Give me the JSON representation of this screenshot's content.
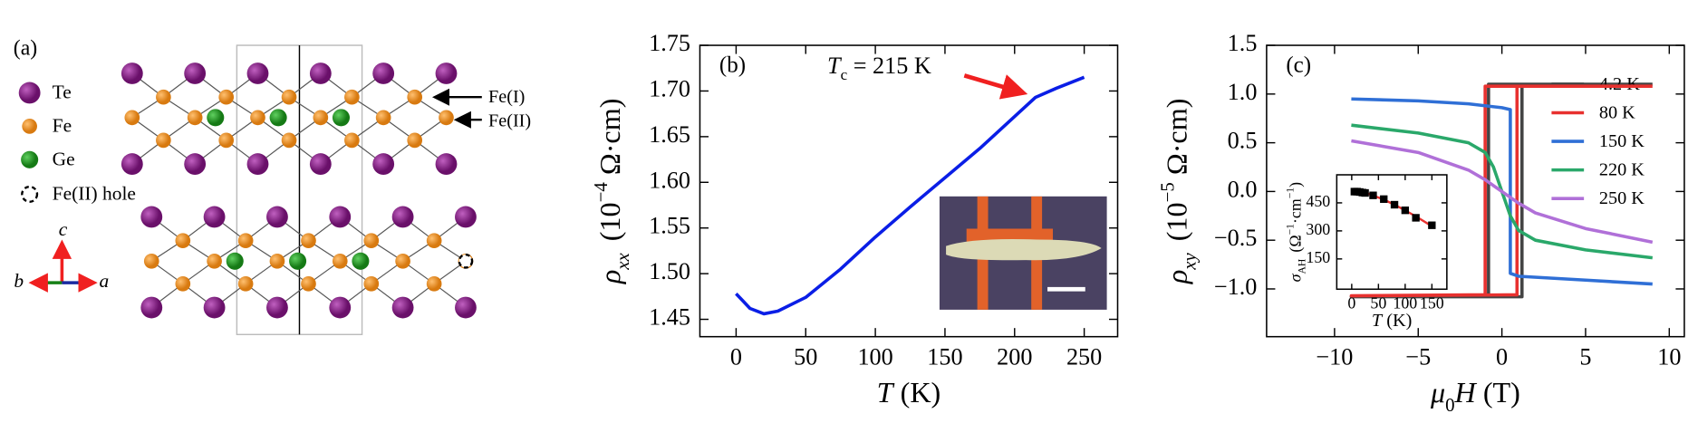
{
  "structure": {
    "label": "(a)",
    "legend": [
      "Te",
      "Fe",
      "Ge",
      "Fe(II) hole"
    ],
    "axes": [
      "c",
      "b",
      "a"
    ],
    "annotations": [
      "Fe(I)",
      "Fe(II)"
    ]
  },
  "chart_data": [
    {
      "type": "line",
      "panel_label": "(b)",
      "xlabel": [
        "T",
        " (K)"
      ],
      "ylabel": [
        "ρ",
        "xx",
        "(10",
        "−4",
        " Ω·cm)"
      ],
      "annotation": [
        "T",
        "c",
        " = 215 K"
      ],
      "x": [
        0,
        5,
        10,
        20,
        30,
        50,
        75,
        100,
        125,
        150,
        175,
        200,
        215,
        230,
        250
      ],
      "series": [
        {
          "color": "#0a1ee6",
          "values": [
            1.478,
            1.47,
            1.462,
            1.456,
            1.459,
            1.474,
            1.505,
            1.54,
            1.573,
            1.605,
            1.637,
            1.672,
            1.693,
            1.703,
            1.715
          ]
        }
      ],
      "xlim": [
        -26,
        274
      ],
      "ylim": [
        1.431,
        1.75
      ],
      "xticks": [
        0,
        50,
        100,
        150,
        200,
        250
      ],
      "yticks": [
        1.45,
        {
          "value": 1.5,
          "label": "1.50"
        },
        1.55,
        {
          "value": 1.6,
          "label": "1.60"
        },
        1.65,
        {
          "value": 1.7,
          "label": "1.70"
        },
        1.75
      ]
    },
    {
      "type": "line",
      "panel_label": "(c)",
      "xlabel": [
        "μ",
        "0",
        "H",
        " (T)"
      ],
      "ylabel": [
        "ρ",
        "xy",
        "(10",
        "−5",
        " Ω·cm)"
      ],
      "legend": "upper right",
      "series": [
        {
          "name": "4.2 K",
          "color": "#444444",
          "x": [
            9,
            -0.8,
            -0.8,
            -9,
            -9,
            1.2,
            1.2,
            9
          ],
          "values": [
            1.1,
            1.1,
            -1.08,
            -1.08,
            -1.08,
            -1.08,
            1.1,
            1.1
          ]
        },
        {
          "name": "80 K",
          "color": "#e8312f",
          "x": [
            9,
            -1.0,
            -1.0,
            -9,
            -9,
            0.9,
            0.9,
            9
          ],
          "values": [
            1.08,
            1.08,
            -1.06,
            -1.07,
            -1.07,
            -1.06,
            1.08,
            1.08
          ]
        },
        {
          "name": "150 K",
          "color": "#2f6fd6",
          "x": [
            -9,
            -5,
            -2,
            0,
            0.5,
            0.5,
            1,
            5,
            9
          ],
          "values": [
            0.95,
            0.93,
            0.9,
            0.86,
            0.84,
            -0.84,
            -0.87,
            -0.91,
            -0.95
          ]
        },
        {
          "name": "220 K",
          "color": "#2aa86a",
          "x": [
            -9,
            -5,
            -2,
            -1,
            -0.5,
            0,
            0.5,
            1,
            2,
            5,
            9
          ],
          "values": [
            0.68,
            0.6,
            0.5,
            0.4,
            0.25,
            0,
            -0.25,
            -0.4,
            -0.5,
            -0.6,
            -0.68
          ]
        },
        {
          "name": "250 K",
          "color": "#b070d8",
          "x": [
            -9,
            -5,
            -2,
            -1,
            0,
            1,
            2,
            5,
            9
          ],
          "values": [
            0.52,
            0.4,
            0.22,
            0.12,
            0,
            -0.12,
            -0.22,
            -0.38,
            -0.52
          ]
        }
      ],
      "xlim": [
        -14.06,
        10.9
      ],
      "ylim": [
        -1.49,
        1.5
      ],
      "xticks": [
        {
          "value": -10,
          "label": "−10"
        },
        {
          "value": -5,
          "label": "−5"
        },
        0,
        5,
        10
      ],
      "yticks": [
        {
          "value": -1,
          "label": "−1.0"
        },
        {
          "value": -0.5,
          "label": "−0.5"
        },
        {
          "value": 0,
          "label": "0.0"
        },
        0.5,
        {
          "value": 1,
          "label": "1.0"
        },
        1.5
      ],
      "inset": {
        "type": "scatter",
        "xlabel": [
          "T",
          " (K)"
        ],
        "ylabel": [
          "σ",
          "AH",
          "(Ω",
          "−1",
          "·cm",
          "−1",
          ")"
        ],
        "x": [
          5,
          10,
          15,
          20,
          25,
          40,
          60,
          80,
          100,
          120,
          150
        ],
        "values": [
          510,
          510,
          508,
          505,
          503,
          490,
          470,
          440,
          410,
          370,
          330
        ],
        "color": "#000000",
        "fit": {
          "color": "#e8312f",
          "x": [
            0,
            30,
            60,
            90,
            120,
            150
          ],
          "values": [
            515,
            500,
            468,
            425,
            378,
            325
          ]
        },
        "xlim": [
          -28,
          178
        ],
        "ylim": [
          -12,
          600
        ],
        "xticks": [
          0,
          50,
          100,
          150
        ],
        "yticks": [
          150,
          300,
          450
        ]
      }
    }
  ]
}
